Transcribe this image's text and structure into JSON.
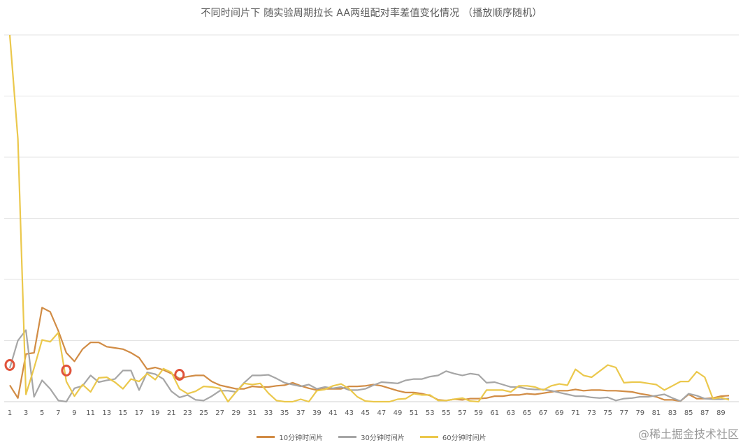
{
  "chart_data": {
    "type": "line",
    "title": "不同时间片下 随实验周期拉长 AA两组配对率差值变化情况 （播放顺序随机）",
    "x": [
      1,
      2,
      3,
      4,
      5,
      6,
      7,
      8,
      9,
      10,
      11,
      12,
      13,
      14,
      15,
      16,
      17,
      18,
      19,
      20,
      21,
      22,
      23,
      24,
      25,
      26,
      27,
      28,
      29,
      30,
      31,
      32,
      33,
      34,
      35,
      36,
      37,
      38,
      39,
      40,
      41,
      42,
      43,
      44,
      45,
      46,
      47,
      48,
      49,
      50,
      51,
      52,
      53,
      54,
      55,
      56,
      57,
      58,
      59,
      60,
      61,
      62,
      63,
      64,
      65,
      66,
      67,
      68,
      69,
      70,
      71,
      72,
      73,
      74,
      75,
      76,
      77,
      78,
      79,
      80,
      81,
      82,
      83,
      84,
      85,
      86,
      87,
      88,
      89,
      90
    ],
    "x_tick_labels": [
      "1",
      "3",
      "5",
      "7",
      "9",
      "11",
      "13",
      "15",
      "17",
      "19",
      "21",
      "23",
      "25",
      "27",
      "29",
      "31",
      "33",
      "35",
      "37",
      "39",
      "41",
      "43",
      "45",
      "47",
      "49",
      "51",
      "53",
      "55",
      "57",
      "59",
      "61",
      "63",
      "65",
      "67",
      "69",
      "71",
      "73",
      "75",
      "77",
      "79",
      "81",
      "83",
      "85",
      "87",
      "89"
    ],
    "ylim": [
      0,
      6
    ],
    "grid": true,
    "legend_position": "bottom",
    "series": [
      {
        "name": "10分钟时间片",
        "color": "#D18C45",
        "values": [
          0.27,
          0.06,
          0.78,
          0.8,
          1.54,
          1.47,
          1.16,
          0.8,
          0.66,
          0.86,
          0.97,
          0.97,
          0.9,
          0.88,
          0.86,
          0.8,
          0.72,
          0.53,
          0.56,
          0.52,
          0.46,
          0.38,
          0.41,
          0.43,
          0.43,
          0.33,
          0.27,
          0.24,
          0.21,
          0.21,
          0.25,
          0.24,
          0.24,
          0.26,
          0.27,
          0.31,
          0.26,
          0.22,
          0.19,
          0.21,
          0.21,
          0.21,
          0.25,
          0.25,
          0.26,
          0.28,
          0.26,
          0.22,
          0.18,
          0.15,
          0.15,
          0.13,
          0.1,
          0.03,
          0.02,
          0.04,
          0.03,
          0.05,
          0.05,
          0.06,
          0.09,
          0.09,
          0.11,
          0.11,
          0.13,
          0.12,
          0.14,
          0.16,
          0.18,
          0.18,
          0.2,
          0.18,
          0.19,
          0.19,
          0.18,
          0.18,
          0.17,
          0.16,
          0.13,
          0.11,
          0.08,
          0.03,
          0.03,
          0.01,
          0.12,
          0.05,
          0.05,
          0.06,
          0.09,
          0.1
        ]
      },
      {
        "name": "30分钟时间片",
        "color": "#A6A6A6",
        "values": [
          0.55,
          1.0,
          1.17,
          0.08,
          0.35,
          0.21,
          0.02,
          0.0,
          0.22,
          0.26,
          0.43,
          0.32,
          0.35,
          0.37,
          0.51,
          0.51,
          0.19,
          0.48,
          0.45,
          0.37,
          0.17,
          0.07,
          0.11,
          0.03,
          0.02,
          0.09,
          0.18,
          0.18,
          0.16,
          0.31,
          0.43,
          0.43,
          0.44,
          0.38,
          0.31,
          0.28,
          0.25,
          0.28,
          0.21,
          0.24,
          0.22,
          0.24,
          0.19,
          0.19,
          0.21,
          0.27,
          0.32,
          0.31,
          0.3,
          0.35,
          0.37,
          0.37,
          0.41,
          0.43,
          0.5,
          0.46,
          0.43,
          0.46,
          0.44,
          0.31,
          0.32,
          0.28,
          0.24,
          0.24,
          0.21,
          0.2,
          0.2,
          0.18,
          0.15,
          0.12,
          0.09,
          0.09,
          0.07,
          0.06,
          0.07,
          0.02,
          0.05,
          0.06,
          0.08,
          0.08,
          0.1,
          0.12,
          0.06,
          0.01,
          0.13,
          0.1,
          0.05,
          0.04,
          0.04,
          0.05
        ]
      },
      {
        "name": "60分钟时间片",
        "color": "#EBC84C",
        "values": [
          6.0,
          4.3,
          0.12,
          0.55,
          1.01,
          0.98,
          1.13,
          0.33,
          0.09,
          0.28,
          0.16,
          0.39,
          0.4,
          0.32,
          0.21,
          0.37,
          0.33,
          0.46,
          0.36,
          0.54,
          0.48,
          0.21,
          0.13,
          0.17,
          0.25,
          0.24,
          0.22,
          0.0,
          0.16,
          0.3,
          0.28,
          0.3,
          0.14,
          0.02,
          0.0,
          0.0,
          0.04,
          0.0,
          0.18,
          0.2,
          0.26,
          0.29,
          0.21,
          0.08,
          0.01,
          0.0,
          0.0,
          0.0,
          0.04,
          0.05,
          0.13,
          0.11,
          0.11,
          0.02,
          0.02,
          0.04,
          0.06,
          0.01,
          0.0,
          0.19,
          0.19,
          0.19,
          0.16,
          0.26,
          0.26,
          0.24,
          0.19,
          0.26,
          0.29,
          0.27,
          0.53,
          0.43,
          0.4,
          0.5,
          0.6,
          0.56,
          0.31,
          0.32,
          0.32,
          0.3,
          0.28,
          0.19,
          0.26,
          0.33,
          0.33,
          0.49,
          0.4,
          0.05,
          0.07,
          0.03
        ]
      }
    ]
  },
  "watermark": "@稀土掘金技术社区",
  "markers_color": "#E0533B"
}
